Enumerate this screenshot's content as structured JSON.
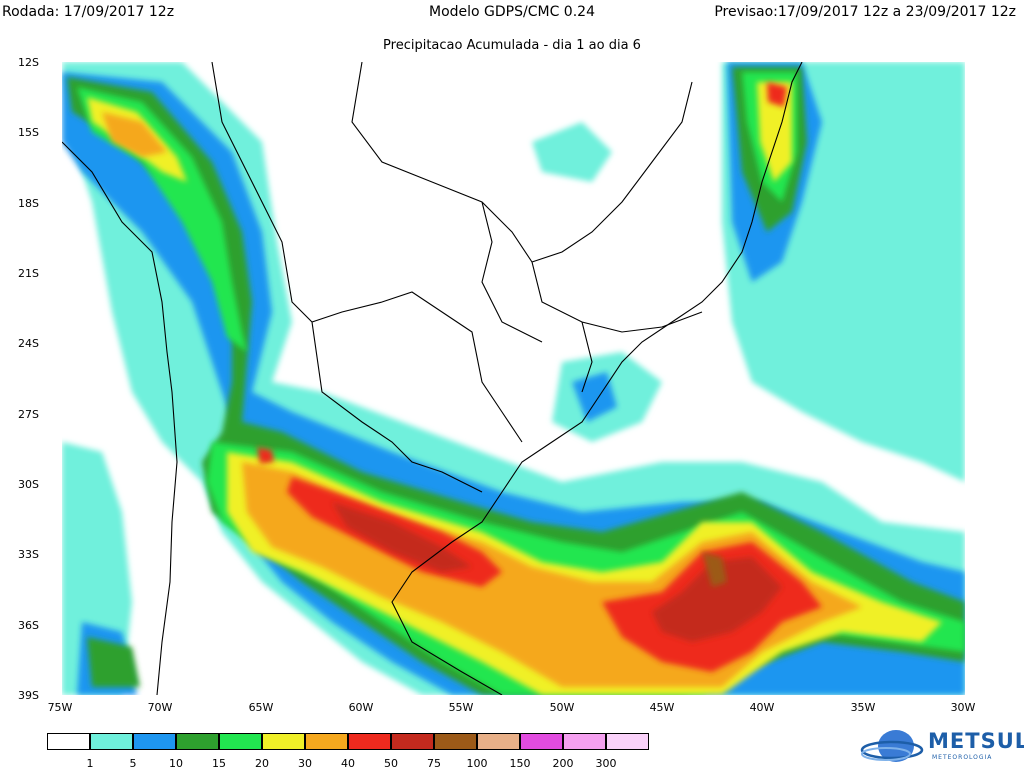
{
  "header": {
    "left": "Rodada: 17/09/2017 12z",
    "center": "Modelo GDPS/CMC 0.24",
    "right": "Previsao:17/09/2017 12z a 23/09/2017 12z"
  },
  "subtitle": "Precipitacao Acumulada - dia 1 ao dia 6",
  "axes": {
    "lat_labels": [
      "12S",
      "15S",
      "18S",
      "21S",
      "24S",
      "27S",
      "30S",
      "33S",
      "36S",
      "39S"
    ],
    "lon_labels": [
      "75W",
      "70W",
      "65W",
      "60W",
      "55W",
      "50W",
      "45W",
      "40W",
      "35W",
      "30W"
    ],
    "lat_range": [
      -12,
      -39
    ],
    "lon_range": [
      -75,
      -30
    ]
  },
  "legend": {
    "levels": [
      "1",
      "5",
      "10",
      "15",
      "20",
      "30",
      "40",
      "50",
      "75",
      "100",
      "150",
      "200",
      "300"
    ],
    "colors": [
      "#ffffff",
      "#6ff0dc",
      "#1e96f0",
      "#2ea02e",
      "#22e650",
      "#f0f028",
      "#f5a81e",
      "#ee2a1e",
      "#c42a1e",
      "#9c5a18",
      "#e8b088",
      "#e24ce0",
      "#f5a0f0",
      "#fad2fa"
    ]
  },
  "logo": {
    "name": "METSUL",
    "tagline": "METEOROLOGIA"
  }
}
